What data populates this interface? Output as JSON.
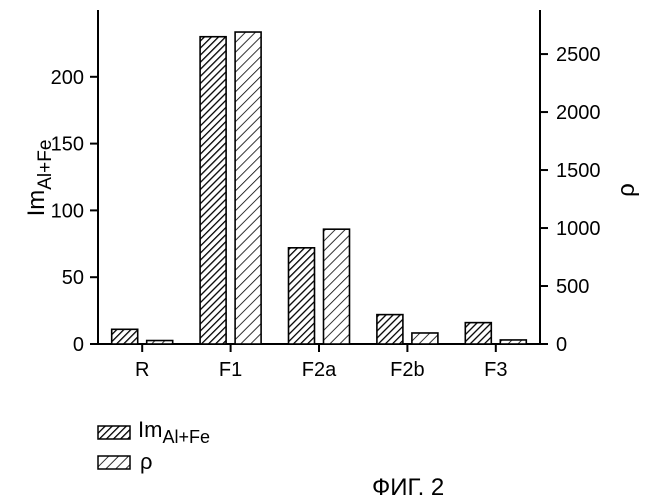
{
  "chart_data": {
    "type": "bar",
    "categories": [
      "R",
      "F1",
      "F2a",
      "F2b",
      "F3"
    ],
    "series": [
      {
        "name": "Im",
        "name_sub": "Al+Fe",
        "axis": "left",
        "pattern": "dense-hatch",
        "values": [
          11,
          230,
          72,
          22,
          16
        ]
      },
      {
        "name": "ρ",
        "name_sub": "",
        "axis": "right",
        "pattern": "sparse-hatch",
        "values": [
          30,
          2690,
          990,
          95,
          35
        ]
      }
    ],
    "y_left": {
      "label": "Im",
      "label_sub": "Al+Fe",
      "ticks": [
        0,
        50,
        100,
        150,
        200
      ],
      "ylim": [
        0,
        250
      ]
    },
    "y_right": {
      "label": "ρ",
      "ticks": [
        0,
        500,
        1000,
        1500,
        2000,
        2500
      ],
      "ylim": [
        0,
        2880
      ]
    },
    "grid": false,
    "legend_position": "bottom-left",
    "figure_caption": "ФИГ. 2"
  }
}
